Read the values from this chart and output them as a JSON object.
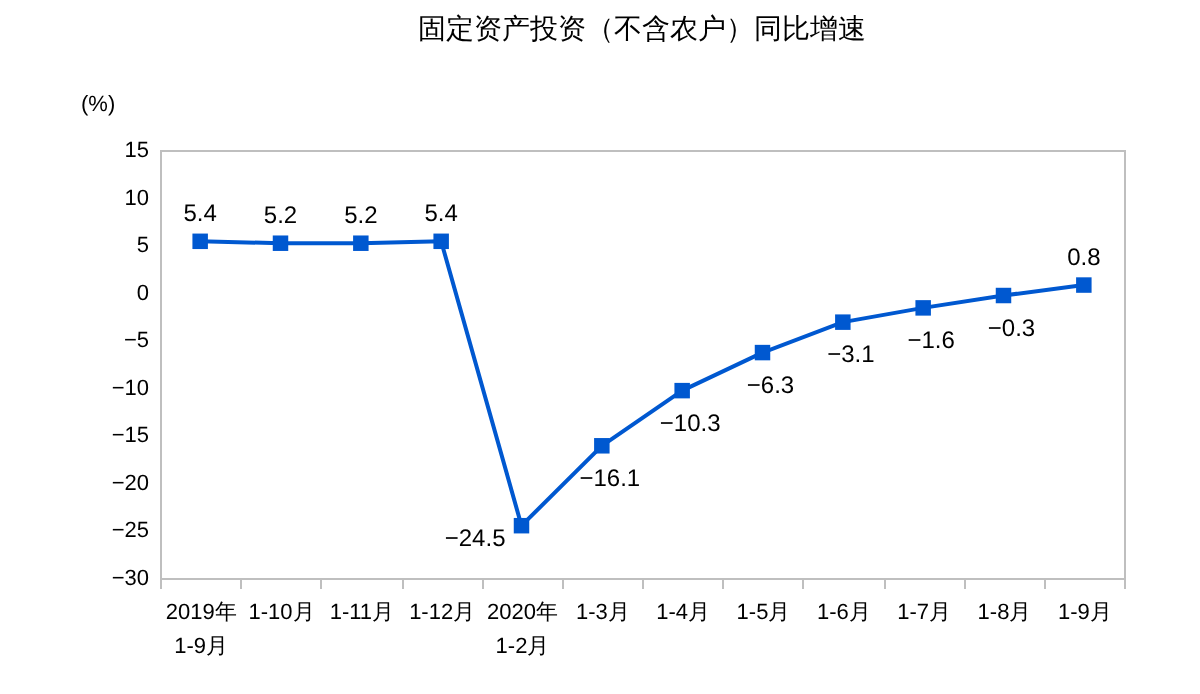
{
  "chart_data": {
    "type": "line",
    "title": "固定资产投资（不含农户）同比增速",
    "ylabel": "(%)",
    "categories": [
      "2019年\n1-9月",
      "1-10月",
      "1-11月",
      "1-12月",
      "2020年\n1-2月",
      "1-3月",
      "1-4月",
      "1-5月",
      "1-6月",
      "1-7月",
      "1-8月",
      "1-9月"
    ],
    "series": [
      {
        "color": "#0058d0",
        "values": [
          5.4,
          5.2,
          5.2,
          5.4,
          -24.5,
          -16.1,
          -10.3,
          -6.3,
          -3.1,
          -1.6,
          -0.3,
          0.8
        ]
      }
    ],
    "ylim": [
      -30,
      15
    ],
    "yticks": [
      -30,
      -25,
      -20,
      -15,
      -10,
      -5,
      0,
      5,
      10,
      15
    ],
    "data_labels": true,
    "marker": "square",
    "grid": false
  }
}
